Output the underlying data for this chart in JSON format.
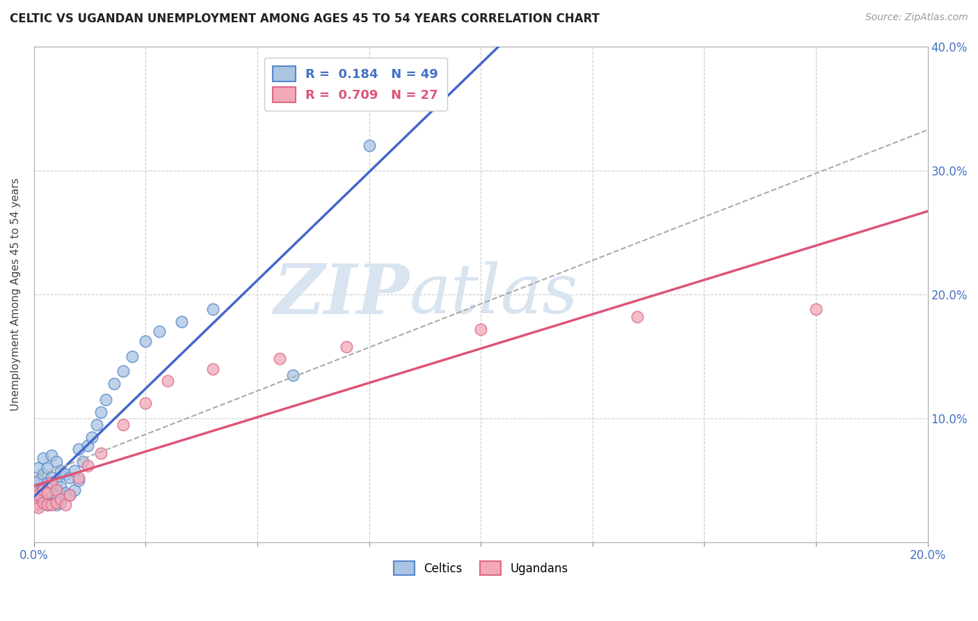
{
  "title": "CELTIC VS UGANDAN UNEMPLOYMENT AMONG AGES 45 TO 54 YEARS CORRELATION CHART",
  "source_text": "Source: ZipAtlas.com",
  "ylabel": "Unemployment Among Ages 45 to 54 years",
  "xlabel": "",
  "xlim": [
    0,
    0.2
  ],
  "ylim": [
    0,
    0.4
  ],
  "xtick_positions": [
    0.0,
    0.025,
    0.05,
    0.075,
    0.1,
    0.125,
    0.15,
    0.175,
    0.2
  ],
  "xtick_labels": [
    "0.0%",
    "",
    "",
    "",
    "",
    "",
    "",
    "",
    "20.0%"
  ],
  "ytick_positions": [
    0.0,
    0.1,
    0.2,
    0.3,
    0.4
  ],
  "ytick_labels": [
    "",
    "10.0%",
    "20.0%",
    "30.0%",
    "40.0%"
  ],
  "watermark_zip": "ZIP",
  "watermark_atlas": "atlas",
  "legend_r1": "R =  0.184   N = 49",
  "legend_r2": "R =  0.709   N = 27",
  "celtics_color": "#aac4e2",
  "ugandans_color": "#f2aab8",
  "celtics_edge": "#5588cc",
  "ugandans_edge": "#dd6688",
  "celtic_line_color": "#4466cc",
  "ugandan_line_color": "#dd5577",
  "combined_line_color": "#aaaaaa",
  "grid_color": "#cccccc",
  "background_color": "#ffffff",
  "celtics_x": [
    0.0,
    0.0,
    0.0,
    0.001,
    0.001,
    0.001,
    0.001,
    0.002,
    0.002,
    0.002,
    0.002,
    0.003,
    0.003,
    0.003,
    0.003,
    0.004,
    0.004,
    0.004,
    0.004,
    0.005,
    0.005,
    0.005,
    0.005,
    0.006,
    0.006,
    0.006,
    0.007,
    0.007,
    0.008,
    0.008,
    0.009,
    0.009,
    0.01,
    0.01,
    0.011,
    0.012,
    0.013,
    0.014,
    0.015,
    0.016,
    0.018,
    0.02,
    0.022,
    0.025,
    0.028,
    0.033,
    0.04,
    0.058,
    0.075
  ],
  "celtics_y": [
    0.032,
    0.04,
    0.048,
    0.03,
    0.038,
    0.05,
    0.06,
    0.032,
    0.042,
    0.055,
    0.068,
    0.03,
    0.038,
    0.048,
    0.06,
    0.032,
    0.04,
    0.052,
    0.07,
    0.03,
    0.038,
    0.048,
    0.065,
    0.032,
    0.045,
    0.058,
    0.04,
    0.055,
    0.038,
    0.052,
    0.042,
    0.058,
    0.05,
    0.075,
    0.065,
    0.078,
    0.085,
    0.095,
    0.105,
    0.115,
    0.128,
    0.138,
    0.15,
    0.162,
    0.17,
    0.178,
    0.188,
    0.135,
    0.32
  ],
  "ugandans_x": [
    0.0,
    0.0,
    0.001,
    0.001,
    0.002,
    0.002,
    0.003,
    0.003,
    0.004,
    0.004,
    0.005,
    0.005,
    0.006,
    0.007,
    0.008,
    0.01,
    0.012,
    0.015,
    0.02,
    0.025,
    0.03,
    0.04,
    0.055,
    0.07,
    0.1,
    0.135,
    0.175
  ],
  "ugandans_y": [
    0.03,
    0.04,
    0.028,
    0.038,
    0.032,
    0.042,
    0.03,
    0.04,
    0.03,
    0.048,
    0.032,
    0.042,
    0.035,
    0.03,
    0.038,
    0.052,
    0.062,
    0.072,
    0.095,
    0.112,
    0.13,
    0.14,
    0.148,
    0.158,
    0.172,
    0.182,
    0.188
  ]
}
